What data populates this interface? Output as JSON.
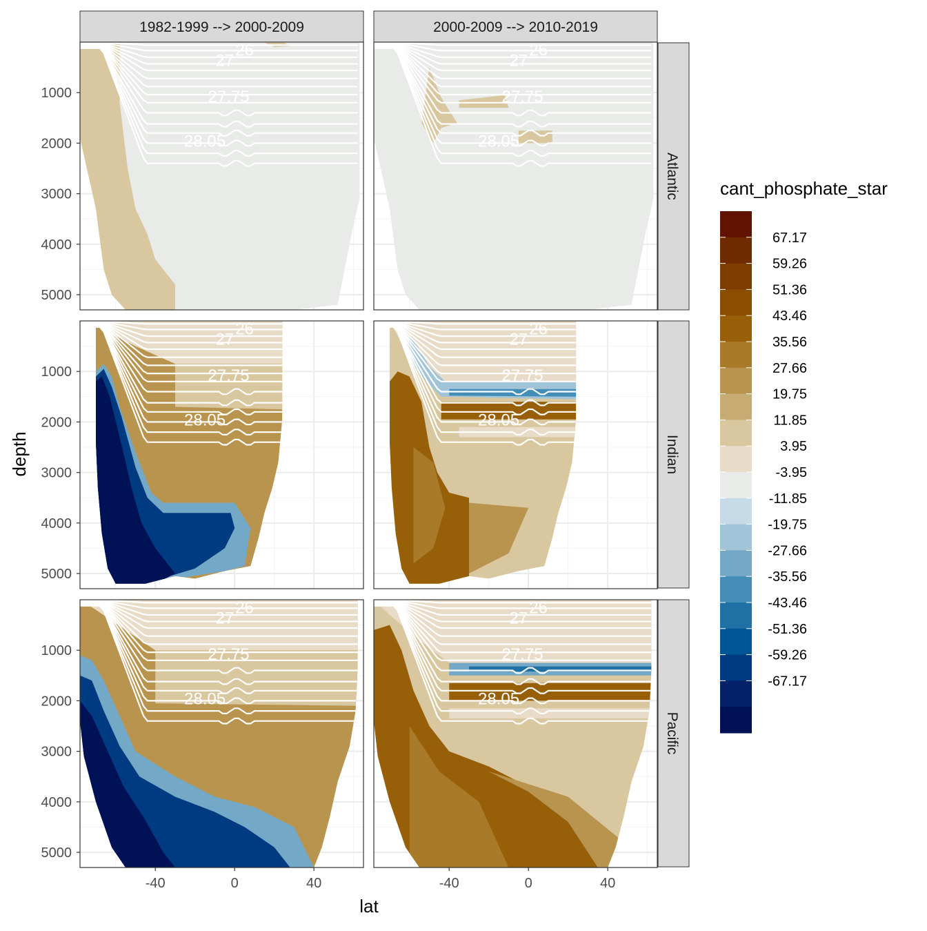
{
  "chart_data": {
    "type": "heatmap",
    "title": "",
    "xlabel": "lat",
    "ylabel": "depth",
    "x_ticks": [
      -40,
      0,
      40
    ],
    "y_ticks": [
      1000,
      2000,
      3000,
      4000,
      5000
    ],
    "xlim": [
      -78,
      65
    ],
    "ylim": [
      5300,
      0
    ],
    "y_reversed": true,
    "grid": true,
    "facet_columns": [
      "1982-1999 --> 2000-2009",
      "2000-2009 --> 2010-2019"
    ],
    "facet_rows": [
      "Atlantic",
      "Indian",
      "Pacific"
    ],
    "isopycnal_labels": [
      "26",
      "27",
      "27.75",
      "28.05"
    ],
    "legend": {
      "title": "cant_phosphate_star",
      "placement": "right",
      "labels": [
        "67.17",
        "59.26",
        "51.36",
        "43.46",
        "35.56",
        "27.66",
        "19.75",
        "11.85",
        "3.95",
        "-3.95",
        "-11.85",
        "-19.75",
        "-27.66",
        "-35.56",
        "-43.46",
        "-51.36",
        "-59.26",
        "-67.17"
      ],
      "colors": [
        "#611300",
        "#6f2a00",
        "#7d3c00",
        "#8a4d02",
        "#985f09",
        "#a87a2a",
        "#b9944e",
        "#c6ab73",
        "#d9c7a0",
        "#e8dcc8",
        "#e9ebe9",
        "#c6dae8",
        "#a1c4d8",
        "#73a9c6",
        "#448db6",
        "#1f70a4",
        "#005594",
        "#003a80",
        "#032068",
        "#001255"
      ]
    },
    "panels": [
      {
        "column": "1982-1999 --> 2000-2009",
        "row": "Atlantic",
        "lat_range": [
          -78,
          63
        ],
        "max_depth": 5300,
        "dominant_value": 0,
        "features": [
          {
            "lat_range": [
              -78,
              -52
            ],
            "depth_range": [
              0,
              5300
            ],
            "value": 11.85
          },
          {
            "lat_range": [
              -48,
              -25
            ],
            "depth_range": [
              500,
              1100
            ],
            "value": -3.95
          }
        ]
      },
      {
        "column": "2000-2009 --> 2010-2019",
        "row": "Atlantic",
        "lat_range": [
          -78,
          63
        ],
        "max_depth": 5300,
        "dominant_value": 0,
        "features": [
          {
            "lat_range": [
              -78,
              -48
            ],
            "depth_range": [
              3000,
              5300
            ],
            "value": -3.95
          },
          {
            "lat_range": [
              -50,
              -10
            ],
            "depth_range": [
              1100,
              2000
            ],
            "value": 11.85
          }
        ]
      },
      {
        "column": "1982-1999 --> 2000-2009",
        "row": "Indian",
        "lat_range": [
          -70,
          24
        ],
        "max_depth": 5300,
        "dominant_value": 27.66,
        "features": [
          {
            "lat_range": [
              -70,
              -35
            ],
            "depth_range": [
              900,
              5300
            ],
            "value": -67.17
          },
          {
            "lat_range": [
              -45,
              5
            ],
            "depth_range": [
              3700,
              5000
            ],
            "value": -59.26
          },
          {
            "lat_range": [
              -70,
              24
            ],
            "depth_range": [
              0,
              900
            ],
            "value": 3.95
          }
        ]
      },
      {
        "column": "2000-2009 --> 2010-2019",
        "row": "Indian",
        "lat_range": [
          -70,
          24
        ],
        "max_depth": 5300,
        "dominant_value": 11.85,
        "features": [
          {
            "lat_range": [
              -70,
              -40
            ],
            "depth_range": [
              1000,
              5300
            ],
            "value": 43.46
          },
          {
            "lat_range": [
              -40,
              24
            ],
            "depth_range": [
              1250,
              1550
            ],
            "value": -27.66
          },
          {
            "lat_range": [
              -40,
              24
            ],
            "depth_range": [
              1600,
              2000
            ],
            "value": 43.46
          }
        ]
      },
      {
        "column": "1982-1999 --> 2000-2009",
        "row": "Pacific",
        "lat_range": [
          -78,
          62
        ],
        "max_depth": 5300,
        "dominant_value": 27.66,
        "features": [
          {
            "lat_range": [
              -78,
              -50
            ],
            "depth_range": [
              1500,
              5300
            ],
            "value": -67.17
          },
          {
            "lat_range": [
              -50,
              38
            ],
            "depth_range": [
              3600,
              5300
            ],
            "value": -59.26
          },
          {
            "lat_range": [
              -78,
              62
            ],
            "depth_range": [
              0,
              1000
            ],
            "value": 3.95
          }
        ]
      },
      {
        "column": "2000-2009 --> 2010-2019",
        "row": "Pacific",
        "lat_range": [
          -78,
          62
        ],
        "max_depth": 5300,
        "dominant_value": 11.85,
        "features": [
          {
            "lat_range": [
              -78,
              -40
            ],
            "depth_range": [
              700,
              5300
            ],
            "value": 43.46
          },
          {
            "lat_range": [
              -40,
              60
            ],
            "depth_range": [
              1250,
              1500
            ],
            "value": -27.66
          },
          {
            "lat_range": [
              -40,
              60
            ],
            "depth_range": [
              1650,
              2000
            ],
            "value": 43.46
          }
        ]
      }
    ]
  }
}
